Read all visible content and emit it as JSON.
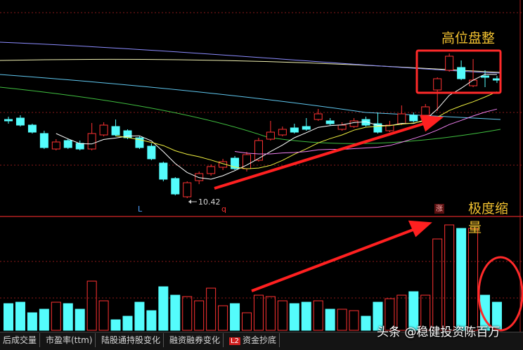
{
  "chart_data": {
    "type": "candlestick",
    "open": [
      12.66,
      12.7,
      12.5,
      12.26,
      11.82,
      12.06,
      11.98,
      11.82,
      12.22,
      12.46,
      12.34,
      12.14,
      11.9,
      11.42,
      10.98,
      10.46,
      10.92,
      11.12,
      11.3,
      11.56,
      11.26,
      11.5,
      12.1,
      12.22,
      12.42,
      12.46,
      12.66,
      12.62,
      12.38,
      12.46,
      12.66,
      12.54,
      12.34,
      12.54,
      12.78,
      12.78,
      13.5,
      14.06,
      14.14,
      13.62,
      13.9,
      13.82
    ],
    "close": [
      12.62,
      12.5,
      12.3,
      11.86,
      12.02,
      11.86,
      11.82,
      12.26,
      12.5,
      12.22,
      12.14,
      11.86,
      11.54,
      10.96,
      10.54,
      10.86,
      11.12,
      11.32,
      11.46,
      11.26,
      11.66,
      12.06,
      12.3,
      12.38,
      12.3,
      12.38,
      12.82,
      12.54,
      12.5,
      12.62,
      12.5,
      12.3,
      12.5,
      12.82,
      12.62,
      13.02,
      13.82,
      14.46,
      13.82,
      13.78,
      13.86,
      13.78
    ],
    "high": [
      12.74,
      12.78,
      12.54,
      12.34,
      12.1,
      12.1,
      12.06,
      12.56,
      12.58,
      12.66,
      12.38,
      12.18,
      11.98,
      11.46,
      11.02,
      10.9,
      11.18,
      11.38,
      11.54,
      11.62,
      11.74,
      12.14,
      12.62,
      12.46,
      12.54,
      12.7,
      12.96,
      12.7,
      12.58,
      12.7,
      12.74,
      12.86,
      12.62,
      13.06,
      12.86,
      13.1,
      13.86,
      14.54,
      14.34,
      14.38,
      14.06,
      13.9
    ],
    "low": [
      12.54,
      12.46,
      12.26,
      11.82,
      11.78,
      11.82,
      11.78,
      11.78,
      12.18,
      12.18,
      12.1,
      11.82,
      11.5,
      10.9,
      10.5,
      10.42,
      10.82,
      11.06,
      11.22,
      11.22,
      11.18,
      11.46,
      12.06,
      12.18,
      12.26,
      12.34,
      12.62,
      12.5,
      12.34,
      12.42,
      12.46,
      12.26,
      12.3,
      12.5,
      12.58,
      12.74,
      12.9,
      14.02,
      13.78,
      13.58,
      13.58,
      13.7
    ],
    "volume": [
      38,
      40,
      25,
      30,
      40,
      38,
      30,
      70,
      42,
      15,
      20,
      40,
      28,
      62,
      50,
      48,
      42,
      60,
      35,
      38,
      25,
      50,
      48,
      42,
      38,
      40,
      42,
      30,
      30,
      28,
      20,
      40,
      45,
      50,
      55,
      50,
      130,
      150,
      145,
      145,
      50,
      40
    ],
    "up_color": "#ff3232",
    "down_color": "#54fcfc",
    "ylim": [
      9.86,
      16.06
    ],
    "volume_ylim": [
      0,
      150
    ],
    "low_label": "10.42",
    "annotations": {
      "top": "高位盘整",
      "volume": "极度缩量"
    },
    "markers": {
      "l": "L",
      "q": "q",
      "zhang": "涨"
    }
  },
  "tabs": [
    "后成交量",
    "市盈率(ttm)",
    "陆股通持股变化",
    "融资融券变化",
    "资金抄底"
  ],
  "tab_badge": "L2",
  "watermark": "头条 @稳健投资陈百万"
}
